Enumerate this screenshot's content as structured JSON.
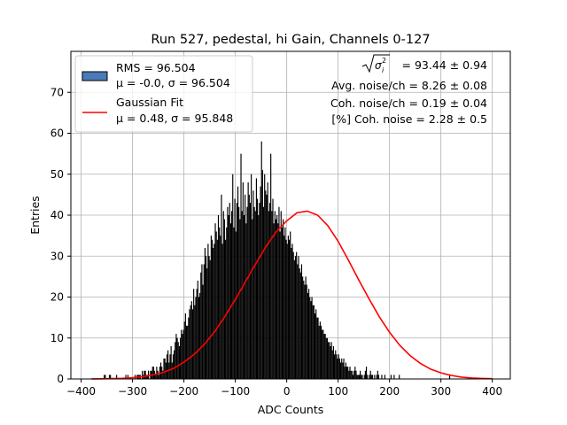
{
  "chart_data": {
    "type": "bar",
    "title": "Run 527, pedestal, hi Gain, Channels 0-127",
    "xlabel": "ADC Counts",
    "ylabel": "Entries",
    "xlim": [
      -420,
      435
    ],
    "ylim": [
      0,
      80
    ],
    "xticks": [
      -400,
      -300,
      -200,
      -100,
      0,
      100,
      200,
      300,
      400
    ],
    "yticks": [
      0,
      10,
      20,
      30,
      40,
      50,
      60,
      70
    ],
    "grid": true,
    "legend_position": "top-left",
    "colors": {
      "histogram": "#000000",
      "legend_patch": "#4a7ab8",
      "fit": "#ff0000",
      "grid": "#b0b0b0"
    },
    "series": [
      {
        "name": "RMS = 96.504",
        "kind": "histogram",
        "subtitle": "μ = -0.0, σ = 96.504",
        "bin_width": 2,
        "x_start": -380,
        "values": [
          0,
          0,
          0,
          0,
          0,
          0,
          0,
          0,
          0,
          0,
          0,
          0,
          1,
          1,
          0,
          0,
          0,
          1,
          1,
          0,
          0,
          0,
          0,
          0,
          1,
          0,
          0,
          0,
          0,
          0,
          0,
          0,
          0,
          1,
          0,
          1,
          0,
          0,
          0,
          0,
          0,
          0,
          1,
          0,
          1,
          1,
          1,
          1,
          0,
          2,
          1,
          2,
          2,
          1,
          1,
          2,
          0,
          2,
          2,
          3,
          3,
          2,
          1,
          3,
          2,
          1,
          3,
          4,
          3,
          2,
          5,
          5,
          4,
          6,
          7,
          4,
          6,
          8,
          4,
          6,
          7,
          9,
          11,
          10,
          9,
          8,
          10,
          12,
          11,
          12,
          14,
          16,
          13,
          13,
          15,
          17,
          18,
          19,
          17,
          22,
          18,
          20,
          22,
          24,
          20,
          21,
          26,
          28,
          23,
          28,
          32,
          30,
          27,
          33,
          30,
          29,
          35,
          34,
          32,
          33,
          38,
          36,
          34,
          40,
          37,
          35,
          45,
          33,
          41,
          39,
          34,
          37,
          42,
          40,
          43,
          38,
          41,
          50,
          37,
          44,
          36,
          43,
          47,
          42,
          39,
          55,
          41,
          48,
          40,
          45,
          38,
          42,
          48,
          45,
          43,
          50,
          39,
          46,
          42,
          41,
          49,
          44,
          40,
          43,
          47,
          58,
          51,
          42,
          50,
          46,
          45,
          48,
          41,
          43,
          55,
          41,
          44,
          38,
          41,
          39,
          40,
          38,
          42,
          36,
          41,
          37,
          39,
          35,
          37,
          34,
          33,
          35,
          34,
          36,
          32,
          33,
          31,
          29,
          30,
          31,
          28,
          30,
          27,
          26,
          28,
          25,
          24,
          23,
          25,
          23,
          21,
          22,
          20,
          19,
          20,
          18,
          18,
          16,
          17,
          15,
          15,
          13,
          14,
          13,
          12,
          12,
          11,
          11,
          10,
          10,
          9,
          9,
          8,
          9,
          7,
          8,
          6,
          7,
          6,
          5,
          6,
          5,
          4,
          5,
          4,
          5,
          3,
          4,
          3,
          3,
          2,
          3,
          2,
          2,
          1,
          2,
          3,
          2,
          1,
          1,
          1,
          2,
          1,
          1,
          0,
          1,
          2,
          3,
          1,
          0,
          1,
          2,
          1,
          1,
          0,
          1,
          0,
          1,
          2,
          1,
          0,
          0,
          1,
          0,
          0,
          1,
          0,
          0,
          0,
          0,
          0,
          1,
          0,
          0,
          1,
          0,
          0,
          0,
          0,
          1,
          0,
          0,
          0,
          0,
          0,
          0,
          0,
          0,
          0,
          0,
          0,
          0,
          0,
          0,
          0,
          0,
          0,
          0,
          0,
          0,
          0,
          0,
          0,
          0,
          0,
          0,
          0,
          0,
          0,
          0,
          0,
          0,
          0,
          0,
          0,
          0,
          0,
          0,
          0,
          0,
          0,
          0,
          0,
          0,
          0,
          0,
          0,
          0,
          1,
          0,
          0,
          0,
          0,
          0,
          0,
          0,
          0,
          0,
          0,
          0,
          0,
          0,
          0,
          0,
          0,
          0,
          0,
          0,
          0,
          0,
          0,
          0,
          0,
          0,
          0,
          0,
          0,
          0,
          0,
          0,
          0,
          0,
          0,
          0,
          0,
          0,
          0,
          0,
          0,
          0
        ]
      },
      {
        "name": "Gaussian Fit",
        "kind": "line",
        "subtitle": "μ = 0.48, σ = 95.848",
        "x": [
          -380,
          -360,
          -340,
          -320,
          -300,
          -280,
          -260,
          -240,
          -220,
          -200,
          -180,
          -160,
          -140,
          -120,
          -100,
          -80,
          -60,
          -40,
          -20,
          0,
          20,
          40,
          60,
          80,
          100,
          120,
          140,
          160,
          180,
          200,
          220,
          240,
          260,
          280,
          300,
          320,
          340,
          360,
          380,
          400
        ],
        "y": [
          0.02,
          0.04,
          0.08,
          0.16,
          0.31,
          0.57,
          1.0,
          1.6,
          2.6,
          4.1,
          6.0,
          8.5,
          11.6,
          15.3,
          19.4,
          23.8,
          28.2,
          32.4,
          36.0,
          38.6,
          40.6,
          41.0,
          40.0,
          37.4,
          33.6,
          29.0,
          24.2,
          19.6,
          15.2,
          11.4,
          8.2,
          5.7,
          3.8,
          2.4,
          1.5,
          0.86,
          0.46,
          0.24,
          0.12,
          0.06
        ]
      }
    ],
    "annotations": {
      "sigma_line": "= 93.44 ± 0.94",
      "avg_noise": "Avg. noise/ch = 8.26 ± 0.08",
      "coh_noise": "Coh. noise/ch = 0.19 ± 0.04",
      "coh_noise_pct": "[%] Coh. noise = 2.28 ± 0.5"
    }
  }
}
